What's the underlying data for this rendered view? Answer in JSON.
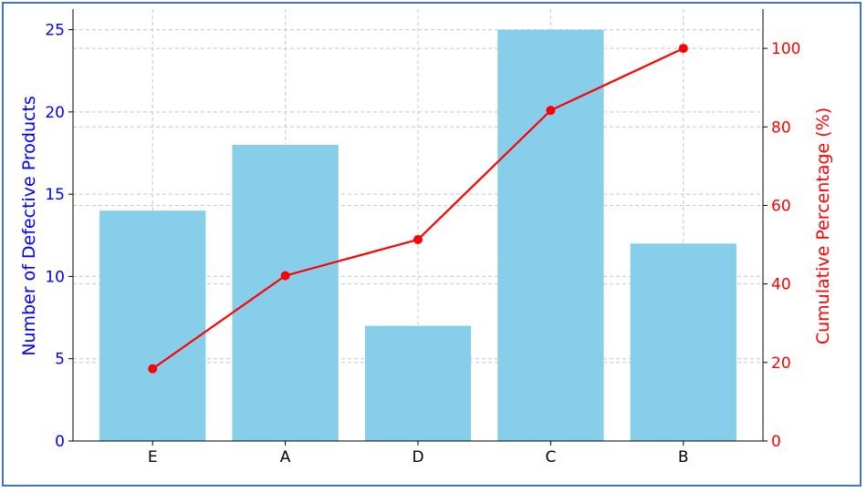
{
  "chart_data": {
    "type": "bar",
    "title": "",
    "categories": [
      "E",
      "A",
      "D",
      "C",
      "B"
    ],
    "series": [
      {
        "values": [
          14,
          18,
          7,
          25,
          12
        ],
        "type": "bar",
        "axis": "left",
        "color": "#87ceeb"
      },
      {
        "values": [
          18.4,
          42.1,
          51.3,
          84.2,
          100
        ],
        "type": "line",
        "axis": "right",
        "color": "#ff0000",
        "marker": "circle"
      }
    ],
    "ylabel": "Number of Defective Products",
    "y2label": "Cumulative Percentage (%)",
    "ylim": [
      0,
      26.25
    ],
    "y2lim": [
      0,
      110
    ],
    "yticks": [
      0,
      5,
      10,
      15,
      20,
      25
    ],
    "y2ticks": [
      0,
      20,
      40,
      60,
      80,
      100
    ],
    "grid": true,
    "colors": {
      "left_axis": "#0000ff",
      "right_axis": "#ff0000",
      "frame": "#4472c4"
    }
  }
}
